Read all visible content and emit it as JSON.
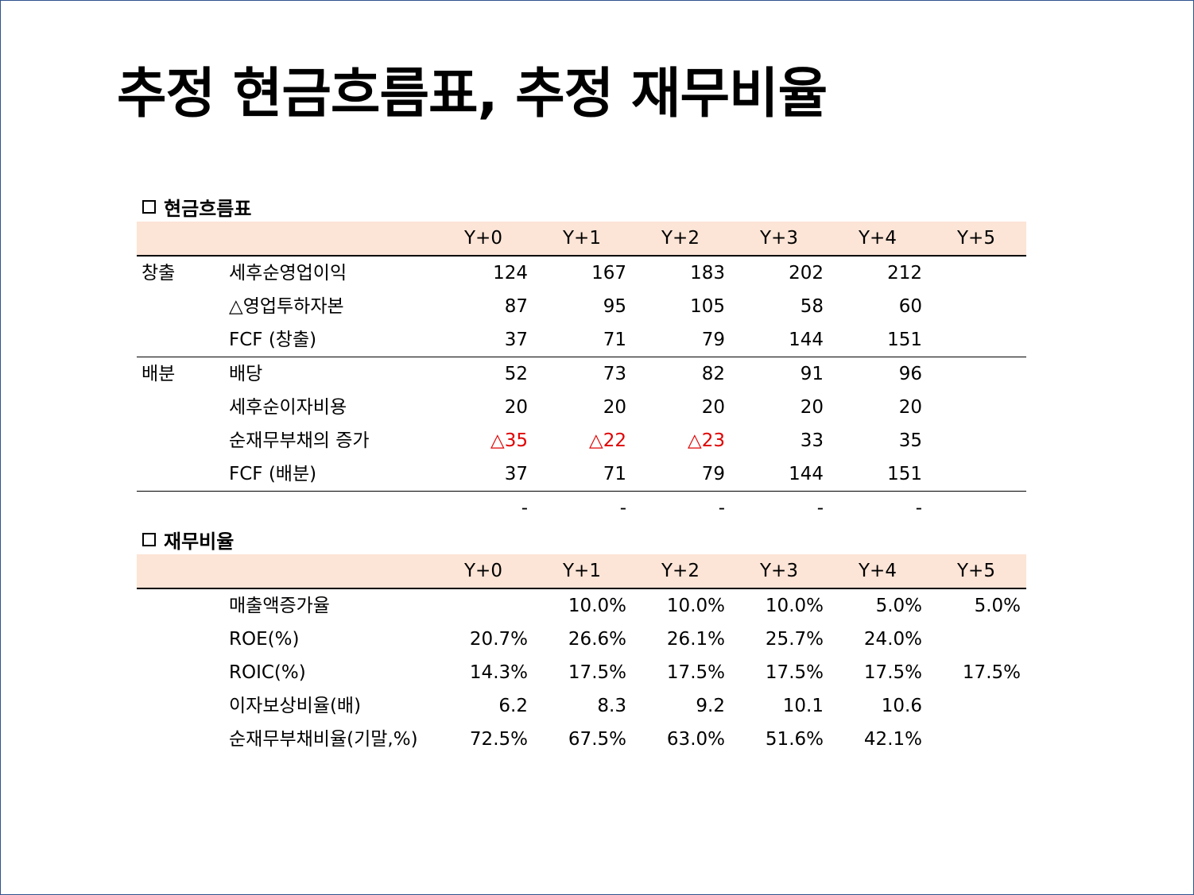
{
  "title": "추정 현금흐름표, 추정 재무비율",
  "cashflow": {
    "section_title": "현금흐름표",
    "section_icon": "square-icon",
    "headers": [
      "Y+0",
      "Y+1",
      "Y+2",
      "Y+3",
      "Y+4",
      "Y+5"
    ],
    "rows": [
      {
        "group": "창출",
        "label": "세후순영업이익",
        "values": [
          "124",
          "167",
          "183",
          "202",
          "212",
          ""
        ]
      },
      {
        "group": "",
        "label": "△영업투하자본",
        "values": [
          "87",
          "95",
          "105",
          "58",
          "60",
          ""
        ]
      },
      {
        "group": "",
        "label": "FCF (창출)",
        "values": [
          "37",
          "71",
          "79",
          "144",
          "151",
          ""
        ]
      },
      {
        "group": "배분",
        "label": "배당",
        "values": [
          "52",
          "73",
          "82",
          "91",
          "96",
          ""
        ]
      },
      {
        "group": "",
        "label": "세후순이자비용",
        "values": [
          "20",
          "20",
          "20",
          "20",
          "20",
          ""
        ]
      },
      {
        "group": "",
        "label": "순재무부채의 증가",
        "values": [
          "△35",
          "△22",
          "△23",
          "33",
          "35",
          ""
        ]
      },
      {
        "group": "",
        "label": "FCF (배분)",
        "values": [
          "37",
          "71",
          "79",
          "144",
          "151",
          ""
        ]
      },
      {
        "group": "",
        "label": "",
        "values": [
          "-",
          "-",
          "-",
          "-",
          "-",
          ""
        ]
      }
    ],
    "negative_color": "#e00000",
    "header_bg": "#fce4d6"
  },
  "ratios": {
    "section_title": "재무비율",
    "section_icon": "square-icon",
    "headers": [
      "Y+0",
      "Y+1",
      "Y+2",
      "Y+3",
      "Y+4",
      "Y+5"
    ],
    "rows": [
      {
        "group": "",
        "label": "매출액증가율",
        "values": [
          "",
          "10.0%",
          "10.0%",
          "10.0%",
          "5.0%",
          "5.0%"
        ]
      },
      {
        "group": "",
        "label": "ROE(%)",
        "values": [
          "20.7%",
          "26.6%",
          "26.1%",
          "25.7%",
          "24.0%",
          ""
        ]
      },
      {
        "group": "",
        "label": "ROIC(%)",
        "values": [
          "14.3%",
          "17.5%",
          "17.5%",
          "17.5%",
          "17.5%",
          "17.5%"
        ]
      },
      {
        "group": "",
        "label": "이자보상비율(배)",
        "values": [
          "6.2",
          "8.3",
          "9.2",
          "10.1",
          "10.6",
          ""
        ]
      },
      {
        "group": "",
        "label": "순재무부채비율(기말,%)",
        "values": [
          "72.5%",
          "67.5%",
          "63.0%",
          "51.6%",
          "42.1%",
          ""
        ]
      }
    ]
  }
}
